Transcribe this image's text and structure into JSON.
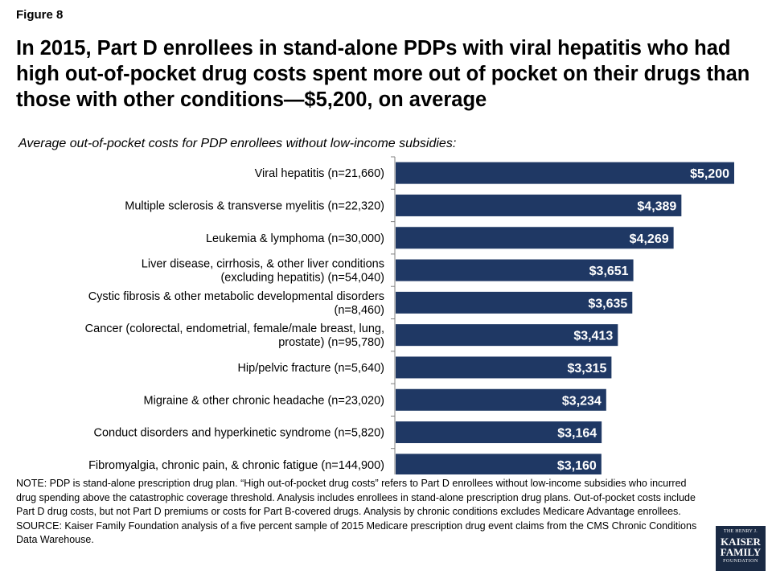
{
  "figure_label": "Figure 8",
  "title": "In 2015, Part D enrollees in stand-alone PDPs with viral hepatitis who had high out-of-pocket drug costs spent more out of pocket on their drugs than those with other conditions—$5,200, on average",
  "subtitle": "Average out-of-pocket costs for PDP enrollees without low-income subsidies:",
  "notes": {
    "note": "NOTE: PDP is stand-alone prescription drug plan. “High out-of-pocket drug costs” refers to Part D enrollees without low-income subsidies who incurred drug spending above the catastrophic coverage threshold. Analysis includes enrollees in stand-alone prescription drug plans. Out-of-pocket costs include Part D drug costs, but not Part D premiums or costs for Part B-covered drugs. Analysis by chronic conditions excludes Medicare Advantage enrollees.",
    "source": "SOURCE: Kaiser Family Foundation analysis of a five percent sample of 2015 Medicare prescription drug event claims from the CMS Chronic Conditions Data Warehouse."
  },
  "logo": {
    "line1": "THE HENRY J.",
    "line2": "KAISER",
    "line3": "FAMILY",
    "line4": "FOUNDATION"
  },
  "colors": {
    "bar": "#1f3864",
    "bar_value_text": "#ffffff",
    "axis": "#808080"
  },
  "chart_data": {
    "type": "bar",
    "orientation": "horizontal",
    "title": "",
    "xlabel": "",
    "ylabel": "",
    "xlim": [
      0,
      5200
    ],
    "grid": false,
    "legend": "none",
    "categories": [
      [
        "Viral hepatitis (n=21,660)"
      ],
      [
        "Multiple sclerosis & transverse myelitis (n=22,320)"
      ],
      [
        "Leukemia & lymphoma (n=30,000)"
      ],
      [
        "Liver disease, cirrhosis, & other liver conditions",
        "(excluding hepatitis) (n=54,040)"
      ],
      [
        "Cystic fibrosis & other metabolic developmental disorders",
        "(n=8,460)"
      ],
      [
        "Cancer (colorectal, endometrial, female/male breast, lung,",
        "prostate) (n=95,780)"
      ],
      [
        "Hip/pelvic fracture (n=5,640)"
      ],
      [
        "Migraine & other chronic headache (n=23,020)"
      ],
      [
        "Conduct disorders and hyperkinetic syndrome (n=5,820)"
      ],
      [
        "Fibromyalgia, chronic pain, & chronic fatigue (n=144,900)"
      ]
    ],
    "values": [
      5200,
      4389,
      4269,
      3651,
      3635,
      3413,
      3315,
      3234,
      3164,
      3160
    ],
    "value_labels": [
      "$5,200",
      "$4,389",
      "$4,269",
      "$3,651",
      "$3,635",
      "$3,413",
      "$3,315",
      "$3,234",
      "$3,164",
      "$3,160"
    ]
  }
}
